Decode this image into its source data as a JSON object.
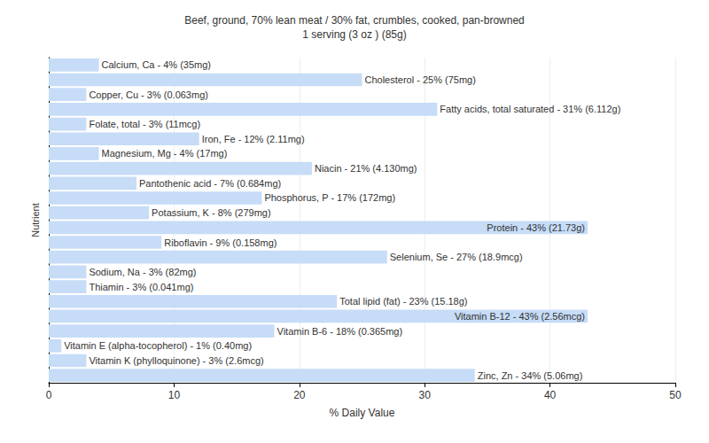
{
  "chart_data": {
    "type": "bar",
    "orientation": "horizontal",
    "title": "Beef, ground, 70% lean meat / 30% fat, crumbles, cooked, pan-browned",
    "subtitle": "1 serving (3 oz ) (85g)",
    "x_label": "% Daily Value",
    "y_label": "Nutrient",
    "categories": [
      null,
      null,
      null,
      null,
      null,
      null,
      null,
      null,
      null,
      null,
      null,
      null,
      null,
      null,
      null,
      null,
      null,
      null,
      null,
      null,
      null,
      null
    ],
    "values": [
      4,
      25,
      3,
      31,
      3,
      12,
      4,
      21,
      7,
      17,
      8,
      43,
      9,
      27,
      3,
      3,
      23,
      43,
      18,
      1,
      3,
      34
    ],
    "value_labels": [
      "Calcium, Ca - 4% (35mg)",
      "Cholesterol - 25% (75mg)",
      "Copper, Cu - 3% (0.063mg)",
      "Fatty acids, total saturated - 31% (6.112g)",
      "Folate, total - 3% (11mcg)",
      "Iron, Fe - 12% (2.11mg)",
      "Magnesium, Mg - 4% (17mg)",
      "Niacin - 21% (4.130mg)",
      "Pantothenic acid - 7% (0.684mg)",
      "Phosphorus, P - 17% (172mg)",
      "Potassium, K - 8% (279mg)",
      "Protein - 43% (21.73g)",
      "Riboflavin - 9% (0.158mg)",
      "Selenium, Se - 27% (18.9mcg)",
      "Sodium, Na - 3% (82mg)",
      "Thiamin - 3% (0.041mg)",
      "Total lipid (fat) - 23% (15.18g)",
      "Vitamin B-12 - 43% (2.56mcg)",
      "Vitamin B-6 - 18% (0.365mg)",
      "Vitamin E (alpha-tocopherol) - 1% (0.40mg)",
      "Vitamin K (phylloquinone) - 3% (2.6mcg)",
      "Zinc, Zn - 34% (5.06mg)"
    ],
    "color": "#c6dcf7",
    "xlim": [
      0,
      50
    ],
    "xticks": [
      0,
      10,
      20,
      30,
      40,
      50
    ],
    "grid": true,
    "data_labels": true,
    "tick_labels": "x"
  }
}
